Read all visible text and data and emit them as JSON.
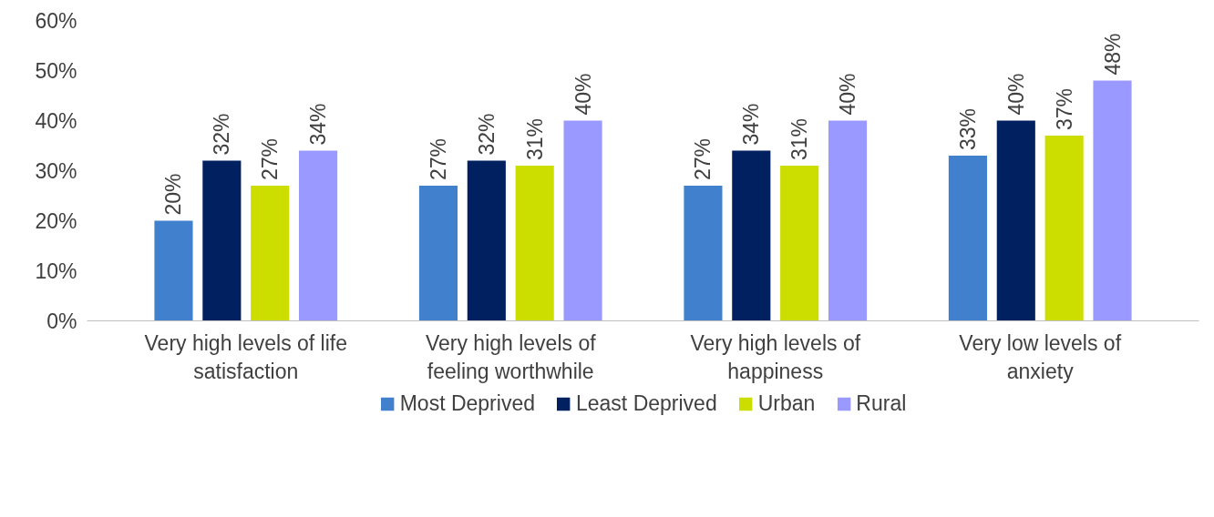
{
  "chart_data": {
    "type": "bar",
    "categories": [
      "Very high levels of life satisfaction",
      "Very high levels of feeling worthwhile",
      "Very high levels of happiness",
      "Very low levels of anxiety"
    ],
    "series": [
      {
        "name": "Most Deprived",
        "color": "#4080cc",
        "values": [
          20,
          27,
          27,
          33
        ],
        "value_labels": [
          "20%",
          "27%",
          "27%",
          "33%"
        ]
      },
      {
        "name": "Least Deprived",
        "color": "#002060",
        "values": [
          32,
          32,
          34,
          40
        ],
        "value_labels": [
          "32%",
          "32%",
          "34%",
          "40%"
        ]
      },
      {
        "name": "Urban",
        "color": "#ccdd00",
        "values": [
          27,
          31,
          31,
          37
        ],
        "value_labels": [
          "27%",
          "31%",
          "31%",
          "37%"
        ]
      },
      {
        "name": "Rural",
        "color": "#9999ff",
        "values": [
          34,
          40,
          40,
          48
        ],
        "value_labels": [
          "34%",
          "40%",
          "40%",
          "48%"
        ]
      }
    ],
    "ylim": [
      0,
      60
    ],
    "yticks": [
      {
        "value": 0,
        "label": "0%"
      },
      {
        "value": 10,
        "label": "10%"
      },
      {
        "value": 20,
        "label": "20%"
      },
      {
        "value": 30,
        "label": "30%"
      },
      {
        "value": 40,
        "label": "40%"
      },
      {
        "value": 50,
        "label": "50%"
      },
      {
        "value": 60,
        "label": "60%"
      }
    ],
    "grid": false,
    "legend": "bottom"
  }
}
